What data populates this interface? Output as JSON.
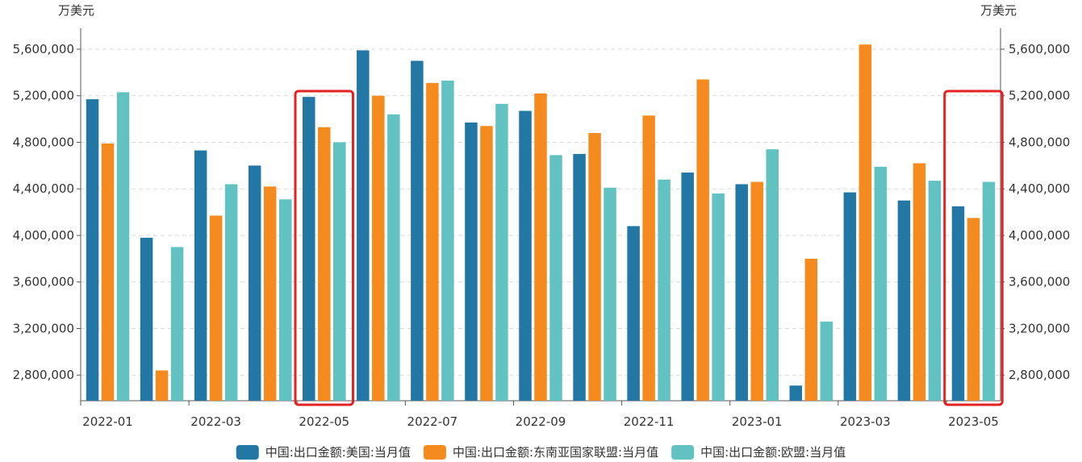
{
  "chart_data": {
    "type": "bar",
    "unit_left": "万美元",
    "unit_right": "万美元",
    "categories": [
      "2022-01",
      "2022-02",
      "2022-03",
      "2022-04",
      "2022-05",
      "2022-06",
      "2022-07",
      "2022-08",
      "2022-09",
      "2022-10",
      "2022-11",
      "2022-12",
      "2023-01",
      "2023-02",
      "2023-03",
      "2023-04",
      "2023-05"
    ],
    "x_tick_labels": [
      "2022-01",
      "2022-03",
      "2022-05",
      "2022-07",
      "2022-09",
      "2022-11",
      "2023-01",
      "2023-03",
      "2023-05"
    ],
    "y_ticks": [
      2800000,
      3200000,
      3600000,
      4000000,
      4400000,
      4800000,
      5200000,
      5600000
    ],
    "y_tick_labels": [
      "2,800,000",
      "3,200,000",
      "3,600,000",
      "4,000,000",
      "4,400,000",
      "4,800,000",
      "5,200,000",
      "5,600,000"
    ],
    "ylim": [
      2580000,
      5780000
    ],
    "grid": true,
    "legend_position": "bottom",
    "series": [
      {
        "name": "中国:出口金额:美国:当月值",
        "color": "#2277a4",
        "values": [
          5170000,
          3980000,
          4730000,
          4600000,
          5190000,
          5590000,
          5500000,
          4970000,
          5070000,
          4700000,
          4080000,
          4540000,
          4440000,
          2710000,
          4370000,
          4300000,
          4250000
        ]
      },
      {
        "name": "中国:出口金额:东南亚国家联盟:当月值",
        "color": "#f58b1f",
        "values": [
          4790000,
          2840000,
          4170000,
          4420000,
          4930000,
          5200000,
          5310000,
          4940000,
          5220000,
          4880000,
          5030000,
          5340000,
          4460000,
          3800000,
          5640000,
          4620000,
          4150000
        ]
      },
      {
        "name": "中国:出口金额:欧盟:当月值",
        "color": "#62c2c2",
        "values": [
          5230000,
          3900000,
          4440000,
          4310000,
          4800000,
          5040000,
          5330000,
          5130000,
          4690000,
          4410000,
          4480000,
          4360000,
          4740000,
          3260000,
          4590000,
          4470000,
          4460000
        ]
      }
    ],
    "highlighted_categories": [
      "2022-05",
      "2023-05"
    ],
    "highlight_color": "#e32222"
  }
}
